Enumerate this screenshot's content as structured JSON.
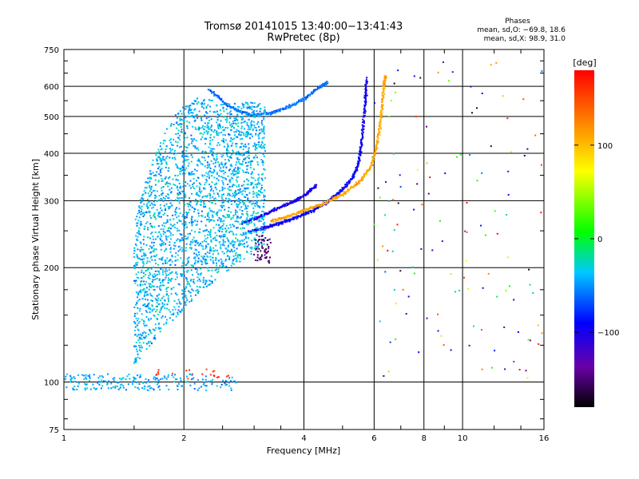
{
  "header": {
    "title_line1": "Tromsø 20141015 13:40:00−13:41:43",
    "title_line2": "RwPretec (8p)"
  },
  "phases_box": {
    "heading": "Phases",
    "line_o": "mean, sd,O: −69.8, 18.6",
    "line_x": "mean, sd,X:  98.9, 31.0"
  },
  "colorbar": {
    "label": "[deg]",
    "ticks": [
      "100",
      "0",
      "−100"
    ],
    "tick_values": [
      100,
      0,
      -100
    ],
    "range": [
      -180,
      180
    ]
  },
  "chart_data": {
    "type": "scatter",
    "xlabel": "Frequency [MHz]",
    "ylabel": "Stationary phase Virtual Height [km]",
    "xscale": "log",
    "yscale": "log",
    "xlim": [
      1,
      16
    ],
    "ylim": [
      75,
      750
    ],
    "xticks": [
      1,
      2,
      4,
      6,
      8,
      10,
      16
    ],
    "xtick_labels": [
      "1",
      "2",
      "4",
      "6",
      "8",
      "10",
      "16"
    ],
    "yticks": [
      75,
      100,
      200,
      300,
      400,
      500,
      600,
      750
    ],
    "ytick_labels": [
      "75",
      "100",
      "200",
      "300",
      "400",
      "500",
      "600",
      "750"
    ],
    "grid": true,
    "color_scale": "phase [deg], rainbow",
    "traces": [
      {
        "desc": "O-mode F2 trace",
        "phase": -95,
        "points": [
          [
            2.9,
            248
          ],
          [
            3.2,
            255
          ],
          [
            3.5,
            262
          ],
          [
            3.8,
            270
          ],
          [
            4.2,
            282
          ],
          [
            4.6,
            298
          ],
          [
            5.0,
            320
          ],
          [
            5.3,
            345
          ],
          [
            5.5,
            380
          ],
          [
            5.6,
            440
          ],
          [
            5.7,
            540
          ],
          [
            5.75,
            630
          ]
        ]
      },
      {
        "desc": "X-mode F2 trace",
        "phase": 110,
        "points": [
          [
            3.3,
            265
          ],
          [
            3.7,
            275
          ],
          [
            4.1,
            285
          ],
          [
            4.5,
            295
          ],
          [
            5.0,
            312
          ],
          [
            5.5,
            335
          ],
          [
            5.9,
            370
          ],
          [
            6.1,
            420
          ],
          [
            6.25,
            500
          ],
          [
            6.35,
            600
          ],
          [
            6.4,
            640
          ]
        ]
      },
      {
        "desc": "Upper F trace",
        "phase": -60,
        "points": [
          [
            2.3,
            590
          ],
          [
            2.6,
            530
          ],
          [
            2.9,
            505
          ],
          [
            3.3,
            510
          ],
          [
            3.6,
            525
          ],
          [
            4.0,
            555
          ],
          [
            4.4,
            600
          ],
          [
            4.6,
            615
          ]
        ]
      },
      {
        "desc": "Lower F trace",
        "phase": -100,
        "points": [
          [
            2.8,
            262
          ],
          [
            3.1,
            272
          ],
          [
            3.4,
            285
          ],
          [
            3.8,
            300
          ],
          [
            4.1,
            315
          ],
          [
            4.3,
            330
          ]
        ]
      }
    ]
  }
}
